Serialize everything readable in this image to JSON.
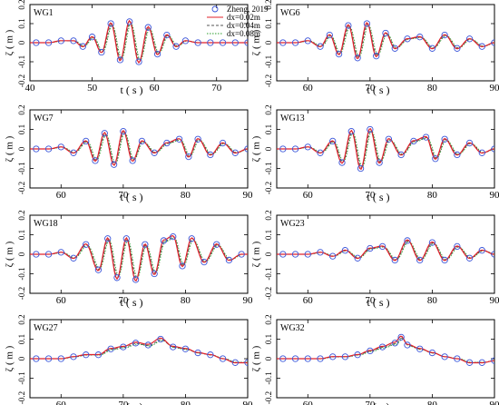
{
  "figure": {
    "legend": [
      {
        "label": "Zheng, 2019",
        "marker": "circle",
        "color": "#3b55d9"
      },
      {
        "label": "dx=0.02m",
        "line": "solid",
        "color": "#e0202a"
      },
      {
        "label": "dx=0.04m",
        "line": "dashed",
        "color": "#555555"
      },
      {
        "label": "dx=0.08m",
        "line": "dotted",
        "color": "#2a9d2a"
      }
    ]
  },
  "chart_data": [
    {
      "type": "line",
      "title": "WG1",
      "xlabel": "t ( s )",
      "ylabel": "ζ ( m )",
      "xlim": [
        40,
        75
      ],
      "ylim": [
        -0.2,
        0.2
      ],
      "xticks": [
        40,
        50,
        60,
        70
      ],
      "yticks": [
        -0.2,
        -0.1,
        0,
        0.1,
        0.2
      ],
      "series": [
        {
          "name": "Zheng, 2019",
          "x": [
            41,
            43,
            45,
            47,
            48.5,
            50,
            51.5,
            53,
            54.5,
            56,
            57.5,
            59,
            60.5,
            62,
            63.5,
            65,
            67,
            69,
            71,
            73,
            75
          ],
          "y": [
            0,
            0,
            0.01,
            0.01,
            -0.02,
            0.03,
            -0.05,
            0.1,
            -0.09,
            0.11,
            -0.1,
            0.08,
            -0.06,
            0.04,
            -0.02,
            0.01,
            0,
            0,
            0,
            0,
            0
          ]
        }
      ]
    },
    {
      "type": "line",
      "title": "WG6",
      "xlabel": "t ( s )",
      "ylabel": "ζ ( m )",
      "xlim": [
        55,
        90
      ],
      "ylim": [
        -0.2,
        0.2
      ],
      "xticks": [
        60,
        70,
        80,
        90
      ],
      "yticks": [
        -0.2,
        -0.1,
        0,
        0.1,
        0.2
      ],
      "series": [
        {
          "name": "Zheng, 2019",
          "x": [
            56,
            58,
            60,
            62,
            63.5,
            65,
            66.5,
            68,
            69.5,
            71,
            72.5,
            74,
            76,
            78,
            80,
            82,
            84,
            86,
            88,
            90
          ],
          "y": [
            0,
            0,
            0.01,
            -0.02,
            0.04,
            -0.06,
            0.09,
            -0.08,
            0.1,
            -0.07,
            0.05,
            -0.03,
            0.02,
            0.03,
            -0.03,
            0.04,
            -0.03,
            0.02,
            -0.02,
            0
          ]
        }
      ]
    },
    {
      "type": "line",
      "title": "WG7",
      "xlabel": "t ( s )",
      "ylabel": "ζ ( m )",
      "xlim": [
        55,
        90
      ],
      "ylim": [
        -0.2,
        0.2
      ],
      "xticks": [
        60,
        70,
        80,
        90
      ],
      "yticks": [
        -0.2,
        -0.1,
        0,
        0.1,
        0.2
      ],
      "series": [
        {
          "name": "Zheng, 2019",
          "x": [
            56,
            58,
            60,
            62,
            64,
            65.5,
            67,
            68.5,
            70,
            71.5,
            73,
            75,
            77,
            79,
            80.5,
            82,
            84,
            86,
            88,
            90
          ],
          "y": [
            0,
            0,
            0.01,
            -0.02,
            0.04,
            -0.06,
            0.08,
            -0.08,
            0.09,
            -0.06,
            0.04,
            -0.02,
            0.03,
            0.05,
            -0.04,
            0.05,
            -0.03,
            0.03,
            -0.02,
            0
          ]
        }
      ]
    },
    {
      "type": "line",
      "title": "WG13",
      "xlabel": "t ( s )",
      "ylabel": "ζ ( m )",
      "xlim": [
        55,
        90
      ],
      "ylim": [
        -0.2,
        0.2
      ],
      "xticks": [
        60,
        70,
        80,
        90
      ],
      "yticks": [
        -0.2,
        -0.1,
        0,
        0.1,
        0.2
      ],
      "series": [
        {
          "name": "Zheng, 2019",
          "x": [
            56,
            58,
            60,
            62,
            64,
            65.5,
            67,
            68.5,
            70,
            71.5,
            73,
            75,
            77,
            79,
            80.5,
            82,
            84,
            86,
            88,
            90
          ],
          "y": [
            0,
            0,
            0.01,
            -0.02,
            0.04,
            -0.07,
            0.09,
            -0.1,
            0.1,
            -0.07,
            0.05,
            -0.03,
            0.04,
            0.06,
            -0.05,
            0.05,
            -0.03,
            0.03,
            -0.02,
            0
          ]
        }
      ]
    },
    {
      "type": "line",
      "title": "WG18",
      "xlabel": "t ( s )",
      "ylabel": "ζ ( m )",
      "xlim": [
        55,
        90
      ],
      "ylim": [
        -0.2,
        0.2
      ],
      "xticks": [
        60,
        70,
        80,
        90
      ],
      "yticks": [
        -0.2,
        -0.1,
        0,
        0.1,
        0.2
      ],
      "series": [
        {
          "name": "Zheng, 2019",
          "x": [
            56,
            58,
            60,
            62,
            64,
            66,
            67.5,
            69,
            70.5,
            72,
            73.5,
            75,
            76.5,
            78,
            79.5,
            81,
            83,
            85,
            87,
            89
          ],
          "y": [
            0,
            0,
            0.01,
            -0.02,
            0.05,
            -0.08,
            0.08,
            -0.12,
            0.08,
            -0.13,
            0.05,
            -0.1,
            0.07,
            0.09,
            -0.06,
            0.08,
            -0.04,
            0.05,
            -0.03,
            0
          ]
        }
      ]
    },
    {
      "type": "line",
      "title": "WG23",
      "xlabel": "t ( s )",
      "ylabel": "ζ ( m )",
      "xlim": [
        55,
        90
      ],
      "ylim": [
        -0.2,
        0.2
      ],
      "xticks": [
        60,
        70,
        80,
        90
      ],
      "yticks": [
        -0.2,
        -0.1,
        0,
        0.1,
        0.2
      ],
      "series": [
        {
          "name": "Zheng, 2019",
          "x": [
            56,
            58,
            60,
            62,
            64,
            66,
            68,
            70,
            72,
            74,
            76,
            78,
            80,
            82,
            84,
            86,
            88,
            90
          ],
          "y": [
            0,
            0,
            0,
            0.01,
            -0.01,
            0.02,
            -0.02,
            0.03,
            0.04,
            -0.03,
            0.07,
            -0.03,
            0.06,
            -0.03,
            0.04,
            -0.02,
            0.02,
            0
          ]
        }
      ]
    },
    {
      "type": "line",
      "title": "WG27",
      "xlabel": "t ( s )",
      "ylabel": "ζ ( m )",
      "xlim": [
        55,
        90
      ],
      "ylim": [
        -0.2,
        0.2
      ],
      "xticks": [
        60,
        70,
        80,
        90
      ],
      "yticks": [
        -0.2,
        -0.1,
        0,
        0.1,
        0.2
      ],
      "series": [
        {
          "name": "Zheng, 2019",
          "x": [
            56,
            58,
            60,
            62,
            64,
            66,
            68,
            70,
            72,
            74,
            76,
            78,
            80,
            82,
            84,
            86,
            88,
            90
          ],
          "y": [
            0,
            0,
            0,
            0.01,
            0.02,
            0.02,
            0.05,
            0.06,
            0.08,
            0.07,
            0.1,
            0.06,
            0.05,
            0.03,
            0.02,
            0,
            -0.02,
            -0.02
          ]
        }
      ]
    },
    {
      "type": "line",
      "title": "WG32",
      "xlabel": "t ( s )",
      "ylabel": "ζ ( m )",
      "xlim": [
        55,
        90
      ],
      "ylim": [
        -0.2,
        0.2
      ],
      "xticks": [
        60,
        70,
        80,
        90
      ],
      "yticks": [
        -0.2,
        -0.1,
        0,
        0.1,
        0.2
      ],
      "series": [
        {
          "name": "Zheng, 2019",
          "x": [
            56,
            58,
            60,
            62,
            64,
            66,
            68,
            70,
            72,
            74,
            75,
            76,
            78,
            80,
            82,
            84,
            86,
            88,
            90
          ],
          "y": [
            0,
            0,
            0,
            0,
            0.01,
            0.01,
            0.02,
            0.04,
            0.06,
            0.08,
            0.11,
            0.07,
            0.05,
            0.03,
            0.01,
            0,
            -0.02,
            -0.02,
            -0.01
          ]
        }
      ]
    }
  ]
}
